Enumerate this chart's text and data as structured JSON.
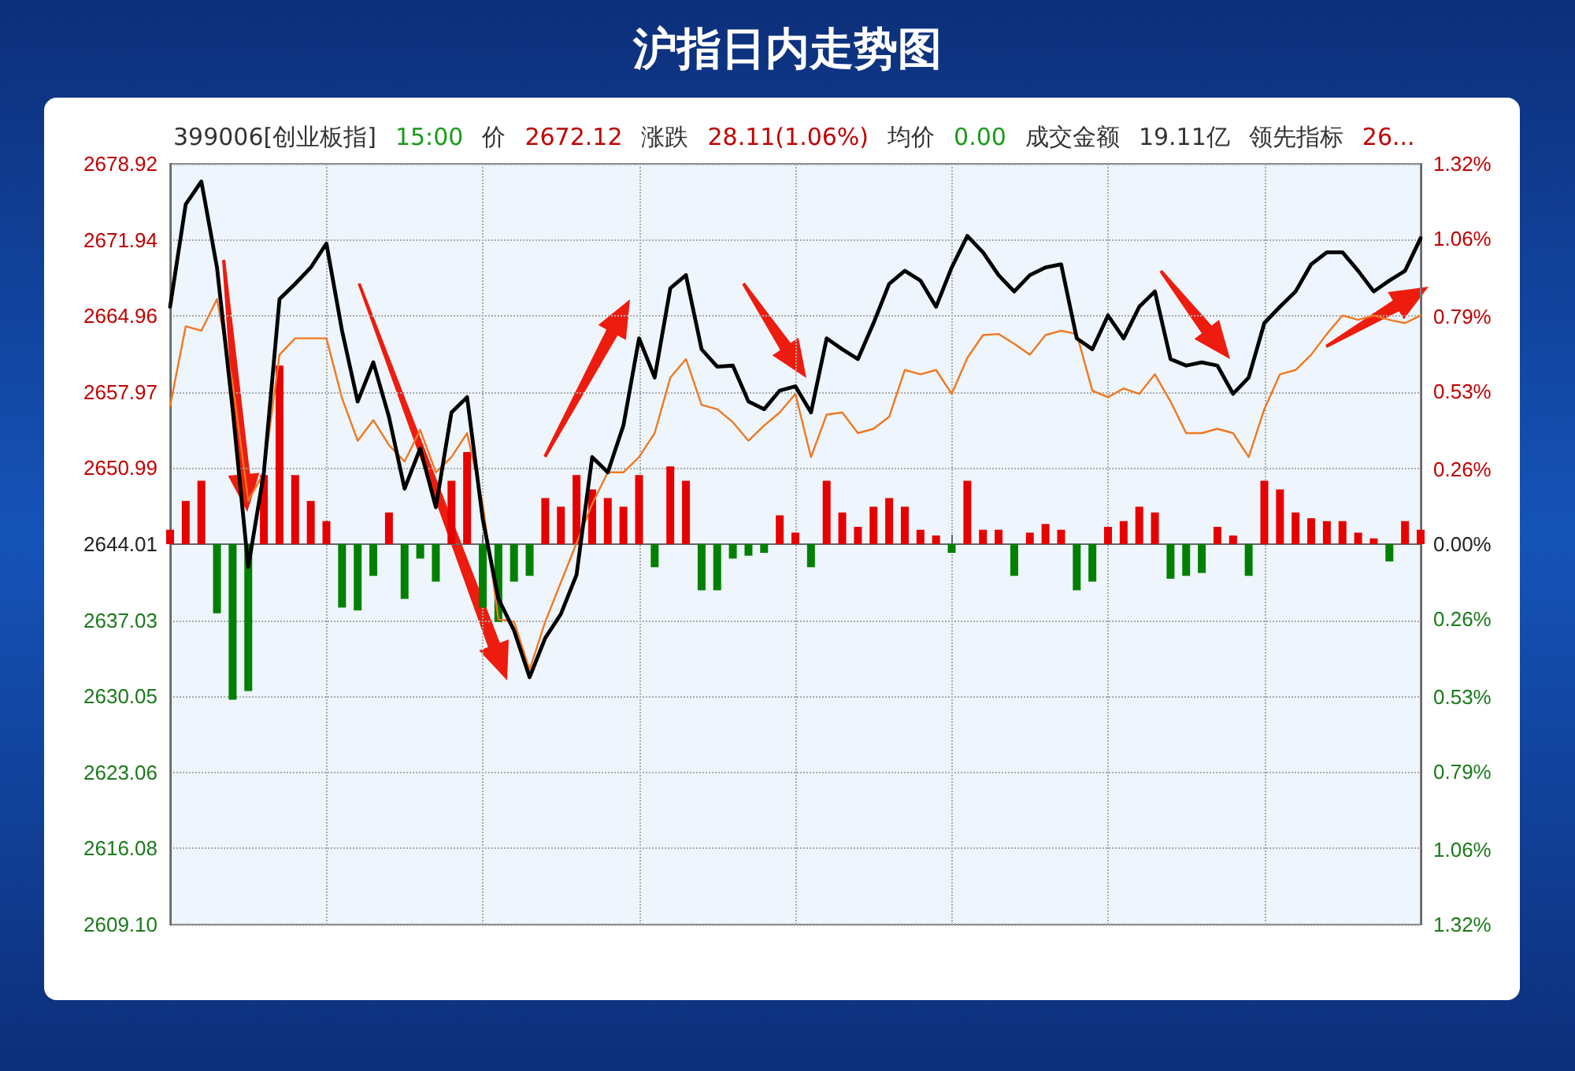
{
  "chart_data": {
    "type": "line",
    "title": "沪指日内走势图",
    "annotations": [
      "399006[创业板指]",
      "15:00",
      "价",
      "2672.12",
      "涨跌",
      "28.11(1.06%)",
      "均价",
      "0.00",
      "成交金额",
      "19.11亿",
      "领先指标",
      "26..."
    ],
    "categories": [
      null,
      null,
      null,
      null,
      null,
      null,
      null,
      null,
      null,
      null,
      null,
      null,
      null,
      null,
      null,
      null,
      null,
      null,
      null,
      null,
      null,
      null,
      null,
      null,
      null,
      null,
      null,
      null,
      null,
      null,
      null,
      null,
      null,
      null,
      null,
      null,
      null,
      null,
      null,
      null,
      null,
      null,
      null,
      null,
      null,
      null,
      null,
      null,
      null,
      null,
      null,
      null,
      null,
      null,
      null,
      null,
      null,
      null,
      null,
      null,
      null,
      null,
      null,
      null,
      null,
      null,
      null,
      null,
      null,
      null,
      null,
      null,
      null,
      null,
      null,
      null,
      null,
      null,
      null,
      null,
      null
    ],
    "series": [
      {
        "type": "bar",
        "axis": "y2",
        "values": [
          0.05,
          0.15,
          0.22,
          -0.24,
          -0.54,
          -0.51,
          0.24,
          0.62,
          0.24,
          0.15,
          0.08,
          -0.22,
          -0.23,
          -0.11,
          0.11,
          -0.19,
          -0.05,
          -0.13,
          0.22,
          0.32,
          -0.22,
          -0.27,
          -0.13,
          -0.11,
          0.16,
          0.13,
          0.24,
          0.19,
          0.16,
          0.13,
          0.24,
          -0.08,
          0.27,
          0.22,
          -0.16,
          -0.16,
          -0.05,
          -0.04,
          -0.03,
          0.1,
          0.04,
          -0.08,
          0.22,
          0.11,
          0.06,
          0.13,
          0.16,
          0.13,
          0.05,
          0.03,
          -0.03,
          0.22,
          0.05,
          0.05,
          -0.11,
          0.04,
          0.07,
          0.05,
          -0.16,
          -0.13,
          0.06,
          0.08,
          0.13,
          0.11,
          -0.12,
          -0.11,
          -0.1,
          0.06,
          0.03,
          -0.11,
          0.22,
          0.19,
          0.11,
          0.09,
          0.08,
          0.08,
          0.04,
          0.02,
          -0.06,
          0.08,
          0.05
        ],
        "colors": [
          "#e60000",
          "#e60000",
          "#e60000",
          "#008000",
          "#008000",
          "#008000",
          "#e60000",
          "#e60000",
          "#e60000",
          "#e60000",
          "#e60000",
          "#008000",
          "#008000",
          "#008000",
          "#e60000",
          "#008000",
          "#008000",
          "#008000",
          "#e60000",
          "#e60000",
          "#008000",
          "#008000",
          "#008000",
          "#008000",
          "#e60000",
          "#e60000",
          "#e60000",
          "#e60000",
          "#e60000",
          "#e60000",
          "#e60000",
          "#008000",
          "#e60000",
          "#e60000",
          "#008000",
          "#008000",
          "#008000",
          "#008000",
          "#008000",
          "#e60000",
          "#e60000",
          "#008000",
          "#e60000",
          "#e60000",
          "#e60000",
          "#e60000",
          "#e60000",
          "#e60000",
          "#e60000",
          "#e60000",
          "#008000",
          "#e60000",
          "#e60000",
          "#e60000",
          "#008000",
          "#e60000",
          "#e60000",
          "#e60000",
          "#008000",
          "#008000",
          "#e60000",
          "#e60000",
          "#e60000",
          "#e60000",
          "#008000",
          "#008000",
          "#008000",
          "#e60000",
          "#e60000",
          "#008000",
          "#e60000",
          "#e60000",
          "#e60000",
          "#e60000",
          "#e60000",
          "#e60000",
          "#e60000",
          "#e60000",
          "#008000",
          "#e60000",
          "#e60000"
        ]
      },
      {
        "color": "#f07820",
        "values": [
          2656.7,
          2664.0,
          2663.6,
          2666.5,
          2658.8,
          2648.0,
          2650.6,
          2661.4,
          2662.9,
          2662.9,
          2662.9,
          2657.4,
          2653.5,
          2655.4,
          2653.1,
          2651.6,
          2654.5,
          2650.6,
          2652.0,
          2654.2,
          2647.7,
          2637.1,
          2636.9,
          2632.5,
          2636.9,
          2640.5,
          2644.1,
          2647.7,
          2650.6,
          2650.6,
          2652.0,
          2654.2,
          2659.3,
          2661.0,
          2656.8,
          2656.4,
          2655.2,
          2653.5,
          2654.9,
          2656.1,
          2657.8,
          2652.0,
          2655.9,
          2656.1,
          2654.2,
          2654.6,
          2655.7,
          2660.0,
          2659.6,
          2660.0,
          2657.8,
          2661.1,
          2663.2,
          2663.3,
          2662.4,
          2661.4,
          2663.2,
          2663.6,
          2663.3,
          2658.1,
          2657.5,
          2658.3,
          2657.8,
          2659.6,
          2657.1,
          2654.2,
          2654.2,
          2654.6,
          2654.2,
          2652.0,
          2656.4,
          2659.6,
          2660.0,
          2661.4,
          2663.3,
          2665.0,
          2664.6,
          2665.0,
          2664.6,
          2664.3,
          2665.0
        ]
      },
      {
        "color": "#000000",
        "values": [
          2665.8,
          2675.2,
          2677.3,
          2669.4,
          2656.4,
          2641.9,
          2650.6,
          2666.5,
          2667.9,
          2669.4,
          2671.6,
          2663.6,
          2657.1,
          2660.7,
          2655.7,
          2649.1,
          2652.8,
          2647.4,
          2656.1,
          2657.5,
          2646.3,
          2639.0,
          2636.1,
          2631.8,
          2635.4,
          2637.6,
          2641.2,
          2652.0,
          2650.6,
          2654.9,
          2662.9,
          2659.3,
          2667.5,
          2668.7,
          2661.9,
          2660.3,
          2660.4,
          2657.1,
          2656.4,
          2658.1,
          2658.5,
          2656.1,
          2662.9,
          2661.9,
          2661.0,
          2664.3,
          2667.9,
          2669.1,
          2668.2,
          2665.8,
          2669.4,
          2672.3,
          2670.8,
          2668.7,
          2667.2,
          2668.7,
          2669.4,
          2669.7,
          2662.9,
          2661.9,
          2665.0,
          2662.9,
          2665.8,
          2667.2,
          2661.0,
          2660.4,
          2660.7,
          2660.4,
          2657.8,
          2659.3,
          2664.3,
          2665.8,
          2667.2,
          2669.7,
          2670.8,
          2670.8,
          2669.1,
          2667.2,
          2668.2,
          2669.1,
          2672.1
        ]
      }
    ],
    "ylim": [
      2609.1,
      2678.92
    ],
    "yticks": [
      {
        "value": 2609.1,
        "label": "2609.10"
      },
      2616.08,
      2623.06,
      2630.05,
      2637.03,
      2644.01,
      2650.99,
      2657.97,
      2664.96,
      2671.94,
      2678.92
    ],
    "y2lim": [
      -1.32,
      1.32
    ],
    "y2ticks": [
      {
        "value": -1.32,
        "label": "1.32%"
      },
      {
        "value": -1.06,
        "label": "1.06%"
      },
      {
        "value": -0.79,
        "label": "0.79%"
      },
      {
        "value": -0.53,
        "label": "0.53%"
      },
      {
        "value": -0.26,
        "label": "0.26%"
      },
      {
        "value": 0,
        "label": "0.00%"
      },
      {
        "value": 0.26,
        "label": "0.26%"
      },
      {
        "value": 0.53,
        "label": "0.53%"
      },
      {
        "value": 0.79,
        "label": "0.79%"
      },
      {
        "value": 1.06,
        "label": "1.06%"
      },
      {
        "value": 1.32,
        "label": "1.32%"
      }
    ],
    "grid": true,
    "marker": "none"
  }
}
